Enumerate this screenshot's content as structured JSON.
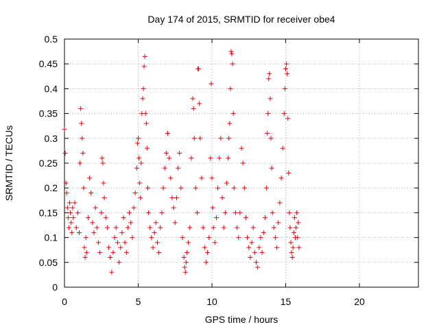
{
  "chart_data": {
    "type": "scatter",
    "title": "Day 174 of 2015, SRMTID for receiver obe4",
    "xlabel": "GPS time / hours",
    "ylabel": "SRMTID / TECUs",
    "xlim": [
      0,
      24
    ],
    "ylim": [
      0,
      0.5
    ],
    "x_ticks": [
      0,
      5,
      10,
      15,
      20
    ],
    "x_tick_labels": [
      "0",
      "5",
      "10",
      "15",
      "20"
    ],
    "y_ticks": [
      0,
      0.05,
      0.1,
      0.15,
      0.2,
      0.25,
      0.3,
      0.35,
      0.4,
      0.45,
      0.5
    ],
    "y_tick_labels": [
      "0",
      "0.05",
      "0.1",
      "0.15",
      "0.2",
      "0.25",
      "0.3",
      "0.35",
      "0.4",
      "0.45",
      "0.5"
    ],
    "grid": true,
    "marker": "plus",
    "series": [
      {
        "color": "#e8000b",
        "points": [
          [
            0.0,
            0.318
          ],
          [
            0.05,
            0.27
          ],
          [
            0.1,
            0.21
          ],
          [
            0.15,
            0.19
          ],
          [
            0.2,
            0.16
          ],
          [
            0.25,
            0.14
          ],
          [
            0.3,
            0.12
          ],
          [
            0.35,
            0.17
          ],
          [
            0.4,
            0.15
          ],
          [
            0.45,
            0.13
          ],
          [
            0.5,
            0.11
          ],
          [
            0.55,
            0.16
          ],
          [
            0.6,
            0.14
          ],
          [
            0.7,
            0.17
          ],
          [
            0.8,
            0.12
          ],
          [
            0.9,
            0.15
          ],
          [
            1.0,
            0.11
          ],
          [
            1.05,
            0.25
          ],
          [
            1.1,
            0.36
          ],
          [
            1.15,
            0.33
          ],
          [
            1.2,
            0.3
          ],
          [
            1.25,
            0.27
          ],
          [
            1.3,
            0.2
          ],
          [
            1.35,
            0.08
          ],
          [
            1.4,
            0.06
          ],
          [
            1.45,
            0.1
          ],
          [
            1.5,
            0.07
          ],
          [
            1.6,
            0.14
          ],
          [
            1.7,
            0.22
          ],
          [
            1.8,
            0.19
          ],
          [
            1.9,
            0.13
          ],
          [
            2.0,
            0.11
          ],
          [
            2.1,
            0.16
          ],
          [
            2.2,
            0.12
          ],
          [
            2.3,
            0.09
          ],
          [
            2.4,
            0.07
          ],
          [
            2.5,
            0.15
          ],
          [
            2.55,
            0.26
          ],
          [
            2.6,
            0.25
          ],
          [
            2.65,
            0.21
          ],
          [
            2.7,
            0.18
          ],
          [
            2.8,
            0.14
          ],
          [
            2.9,
            0.12
          ],
          [
            3.0,
            0.08
          ],
          [
            3.1,
            0.06
          ],
          [
            3.2,
            0.03
          ],
          [
            3.3,
            0.07
          ],
          [
            3.4,
            0.1
          ],
          [
            3.5,
            0.12
          ],
          [
            3.6,
            0.09
          ],
          [
            3.7,
            0.05
          ],
          [
            3.8,
            0.08
          ],
          [
            3.9,
            0.11
          ],
          [
            4.0,
            0.14
          ],
          [
            4.1,
            0.09
          ],
          [
            4.2,
            0.07
          ],
          [
            4.3,
            0.12
          ],
          [
            4.4,
            0.15
          ],
          [
            4.5,
            0.13
          ],
          [
            4.6,
            0.1
          ],
          [
            4.7,
            0.16
          ],
          [
            4.8,
            0.19
          ],
          [
            4.9,
            0.24
          ],
          [
            4.95,
            0.29
          ],
          [
            5.0,
            0.3
          ],
          [
            5.05,
            0.26
          ],
          [
            5.1,
            0.21
          ],
          [
            5.15,
            0.18
          ],
          [
            5.2,
            0.25
          ],
          [
            5.25,
            0.35
          ],
          [
            5.3,
            0.38
          ],
          [
            5.35,
            0.4
          ],
          [
            5.4,
            0.445
          ],
          [
            5.45,
            0.465
          ],
          [
            5.5,
            0.35
          ],
          [
            5.55,
            0.33
          ],
          [
            5.6,
            0.28
          ],
          [
            5.65,
            0.2
          ],
          [
            5.7,
            0.15
          ],
          [
            5.8,
            0.12
          ],
          [
            5.9,
            0.1
          ],
          [
            6.0,
            0.08
          ],
          [
            6.1,
            0.11
          ],
          [
            6.2,
            0.13
          ],
          [
            6.3,
            0.09
          ],
          [
            6.4,
            0.07
          ],
          [
            6.5,
            0.12
          ],
          [
            6.6,
            0.15
          ],
          [
            6.7,
            0.2
          ],
          [
            6.8,
            0.24
          ],
          [
            6.9,
            0.27
          ],
          [
            7.0,
            0.31
          ],
          [
            7.1,
            0.26
          ],
          [
            7.2,
            0.22
          ],
          [
            7.3,
            0.18
          ],
          [
            7.4,
            0.16
          ],
          [
            7.5,
            0.13
          ],
          [
            7.6,
            0.18
          ],
          [
            7.7,
            0.24
          ],
          [
            7.8,
            0.27
          ],
          [
            7.9,
            0.2
          ],
          [
            8.0,
            0.1
          ],
          [
            8.1,
            0.06
          ],
          [
            8.15,
            0.04
          ],
          [
            8.2,
            0.03
          ],
          [
            8.25,
            0.05
          ],
          [
            8.3,
            0.07
          ],
          [
            8.4,
            0.09
          ],
          [
            8.5,
            0.12
          ],
          [
            8.6,
            0.26
          ],
          [
            8.7,
            0.38
          ],
          [
            8.75,
            0.36
          ],
          [
            8.8,
            0.3
          ],
          [
            8.9,
            0.2
          ],
          [
            9.0,
            0.15
          ],
          [
            9.05,
            0.44
          ],
          [
            9.1,
            0.44
          ],
          [
            9.15,
            0.37
          ],
          [
            9.2,
            0.3
          ],
          [
            9.3,
            0.22
          ],
          [
            9.4,
            0.12
          ],
          [
            9.5,
            0.08
          ],
          [
            9.6,
            0.05
          ],
          [
            9.7,
            0.07
          ],
          [
            9.8,
            0.1
          ],
          [
            9.9,
            0.26
          ],
          [
            9.95,
            0.41
          ],
          [
            10.0,
            0.22
          ],
          [
            10.05,
            0.16
          ],
          [
            10.1,
            0.12
          ],
          [
            10.2,
            0.09
          ],
          [
            10.3,
            0.14
          ],
          [
            10.4,
            0.2
          ],
          [
            10.5,
            0.26
          ],
          [
            10.6,
            0.3
          ],
          [
            10.7,
            0.18
          ],
          [
            10.8,
            0.12
          ],
          [
            10.9,
            0.15
          ],
          [
            11.0,
            0.21
          ],
          [
            11.1,
            0.26
          ],
          [
            11.15,
            0.3
          ],
          [
            11.2,
            0.33
          ],
          [
            11.25,
            0.4
          ],
          [
            11.3,
            0.475
          ],
          [
            11.35,
            0.47
          ],
          [
            11.4,
            0.45
          ],
          [
            11.45,
            0.35
          ],
          [
            11.5,
            0.2
          ],
          [
            11.6,
            0.15
          ],
          [
            11.7,
            0.12
          ],
          [
            11.8,
            0.1
          ],
          [
            11.9,
            0.15
          ],
          [
            12.0,
            0.28
          ],
          [
            12.1,
            0.25
          ],
          [
            12.2,
            0.2
          ],
          [
            12.3,
            0.14
          ],
          [
            12.4,
            0.1
          ],
          [
            12.5,
            0.08
          ],
          [
            12.6,
            0.06
          ],
          [
            12.7,
            0.09
          ],
          [
            12.8,
            0.12
          ],
          [
            12.9,
            0.07
          ],
          [
            13.0,
            0.05
          ],
          [
            13.1,
            0.04
          ],
          [
            13.2,
            0.08
          ],
          [
            13.3,
            0.1
          ],
          [
            13.4,
            0.07
          ],
          [
            13.5,
            0.11
          ],
          [
            13.6,
            0.14
          ],
          [
            13.7,
            0.2
          ],
          [
            13.75,
            0.31
          ],
          [
            13.8,
            0.35
          ],
          [
            13.85,
            0.42
          ],
          [
            13.9,
            0.43
          ],
          [
            13.95,
            0.38
          ],
          [
            14.0,
            0.3
          ],
          [
            14.05,
            0.24
          ],
          [
            14.1,
            0.15
          ],
          [
            14.2,
            0.12
          ],
          [
            14.3,
            0.1
          ],
          [
            14.4,
            0.08
          ],
          [
            14.5,
            0.13
          ],
          [
            14.6,
            0.17
          ],
          [
            14.7,
            0.22
          ],
          [
            14.8,
            0.28
          ],
          [
            14.9,
            0.35
          ],
          [
            14.95,
            0.4
          ],
          [
            15.0,
            0.44
          ],
          [
            15.05,
            0.45
          ],
          [
            15.1,
            0.43
          ],
          [
            15.15,
            0.34
          ],
          [
            15.2,
            0.23
          ],
          [
            15.25,
            0.15
          ],
          [
            15.3,
            0.12
          ],
          [
            15.35,
            0.09
          ],
          [
            15.4,
            0.07
          ],
          [
            15.45,
            0.06
          ],
          [
            15.5,
            0.08
          ],
          [
            15.55,
            0.11
          ],
          [
            15.6,
            0.14
          ],
          [
            15.65,
            0.1
          ],
          [
            15.7,
            0.12
          ],
          [
            15.75,
            0.15
          ],
          [
            15.8,
            0.1
          ],
          [
            15.85,
            0.13
          ],
          [
            15.9,
            0.08
          ]
        ]
      }
    ]
  }
}
